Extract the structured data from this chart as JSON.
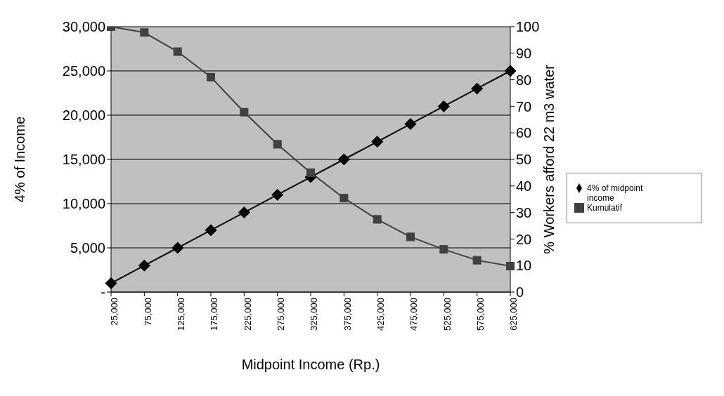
{
  "chart_data": {
    "type": "line",
    "xlabel": "Midpoint Income (Rp.)",
    "ylabel": "4% of Income",
    "y2label": "% Workers afford 22 m3 water",
    "categories": [
      "25,000",
      "75,000",
      "125,000",
      "175,000",
      "225,000",
      "275,000",
      "325,000",
      "375,000",
      "425,000",
      "475,000",
      "525,000",
      "575,000",
      "625,000"
    ],
    "series": [
      {
        "name": "4% of midpoint income",
        "color": "#000000",
        "marker": "diamond",
        "values": [
          1000,
          3000,
          5000,
          7000,
          9000,
          11000,
          13000,
          15000,
          17000,
          19000,
          21000,
          23000,
          25000
        ]
      },
      {
        "name": "Kumulatif",
        "color": "#404040",
        "marker": "square",
        "axis": "y2",
        "values": [
          100,
          97.8,
          90.6,
          81,
          67.8,
          55.7,
          45,
          35.4,
          27.4,
          20.8,
          16.1,
          12,
          9.8
        ]
      }
    ],
    "ylim": [
      0,
      30000
    ],
    "yticks": [
      {
        "value": 0,
        "label": "-"
      },
      {
        "value": 5000,
        "label": "5,000"
      },
      {
        "value": 10000,
        "label": "10,000"
      },
      {
        "value": 15000,
        "label": "15,000"
      },
      {
        "value": 20000,
        "label": "20,000"
      },
      {
        "value": 25000,
        "label": "25,000"
      },
      {
        "value": 30000,
        "label": "30,000"
      }
    ],
    "y2lim": [
      0,
      100
    ],
    "y2ticks": [
      0,
      10,
      20,
      30,
      40,
      50,
      60,
      70,
      80,
      90,
      100
    ],
    "grid": "y",
    "legend": "right"
  }
}
